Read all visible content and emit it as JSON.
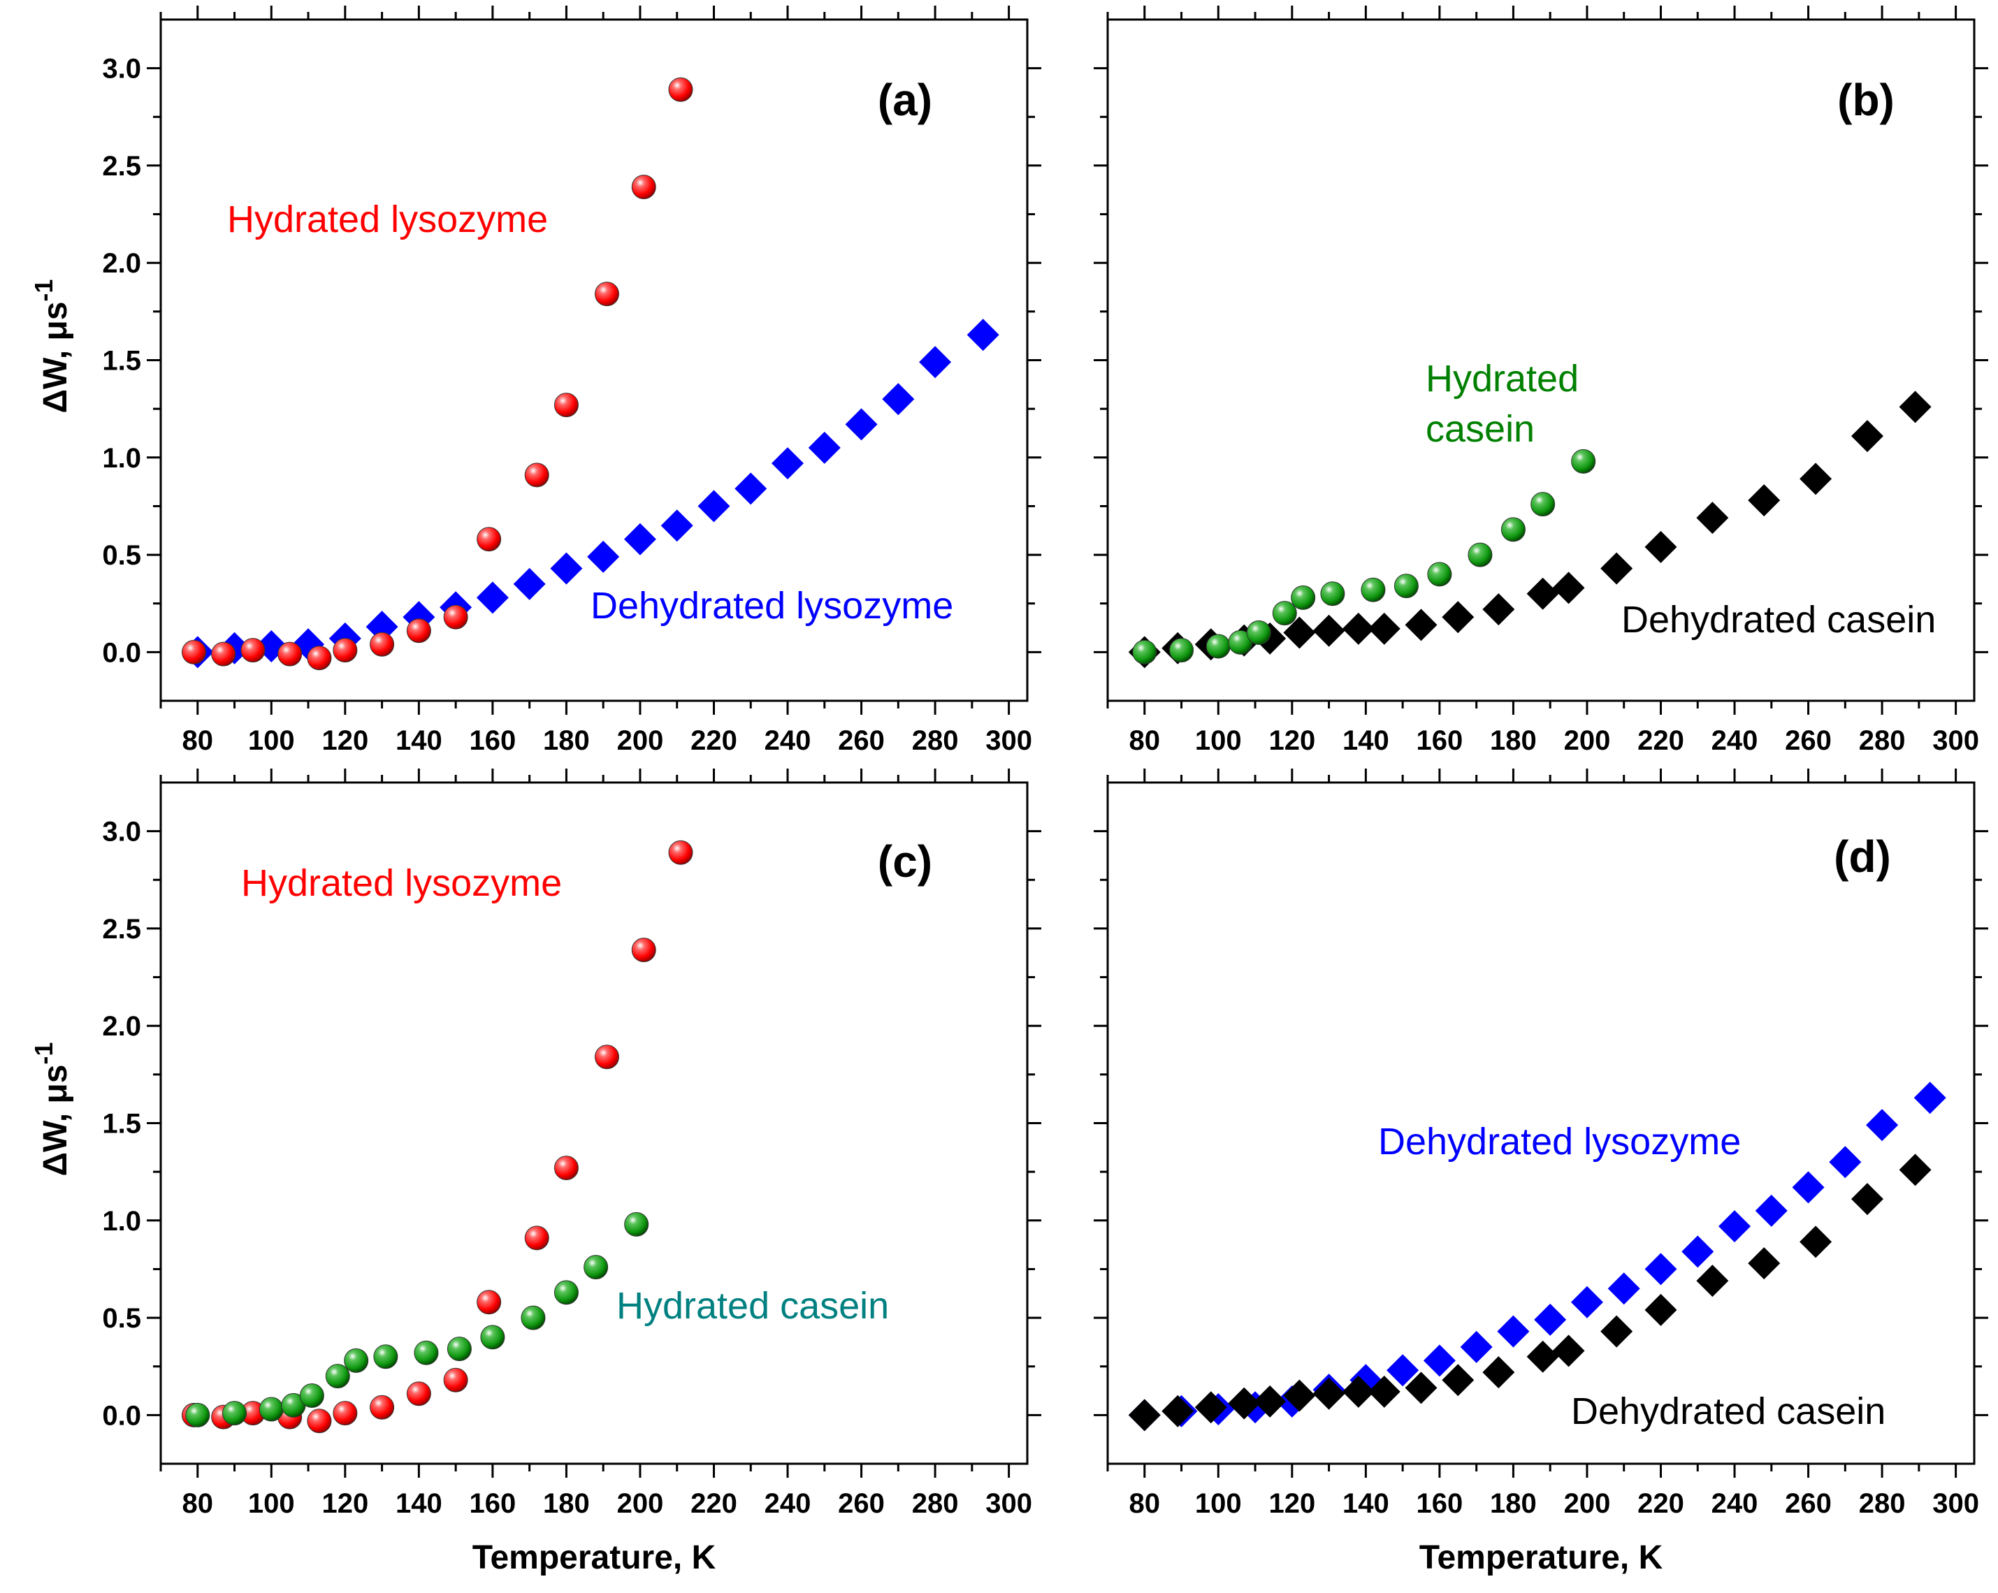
{
  "chart_data": [
    {
      "type": "scatter",
      "panel_label": "(a)",
      "xlabel": "",
      "ylabel_main": "ΔW, μs",
      "ylabel_sup": "-1",
      "xlim": [
        70,
        305
      ],
      "ylim": [
        -0.25,
        3.25
      ],
      "xticks": [
        "80",
        "100",
        "120",
        "140",
        "160",
        "180",
        "200",
        "220",
        "240",
        "260",
        "280",
        "300"
      ],
      "yticks": [
        "0.0",
        "0.5",
        "1.0",
        "1.5",
        "2.0",
        "2.5",
        "3.0"
      ],
      "annotations": [
        {
          "text": "Hydrated lysozyme",
          "color": "#ff0000"
        },
        {
          "text": "Dehydrated lysozyme",
          "color": "#0000ff"
        }
      ],
      "series": [
        {
          "name": "Dehydrated lysozyme",
          "marker": "diamond",
          "color": "#0000ff",
          "x": [
            80,
            90,
            100,
            110,
            120,
            130,
            140,
            150,
            160,
            170,
            180,
            190,
            200,
            210,
            220,
            230,
            240,
            250,
            260,
            270,
            280,
            293
          ],
          "y": [
            0.0,
            0.02,
            0.03,
            0.04,
            0.07,
            0.13,
            0.18,
            0.23,
            0.28,
            0.35,
            0.43,
            0.49,
            0.58,
            0.65,
            0.75,
            0.84,
            0.97,
            1.05,
            1.17,
            1.3,
            1.49,
            1.63
          ]
        },
        {
          "name": "Hydrated lysozyme",
          "marker": "sphere",
          "color": "#ff0000",
          "x": [
            79,
            87,
            95,
            105,
            113,
            120,
            130,
            140,
            150,
            159,
            172,
            180,
            191,
            201,
            211
          ],
          "y": [
            0.0,
            -0.01,
            0.01,
            -0.01,
            -0.03,
            0.01,
            0.04,
            0.11,
            0.18,
            0.58,
            0.91,
            1.27,
            1.84,
            2.39,
            2.89
          ]
        }
      ]
    },
    {
      "type": "scatter",
      "panel_label": "(b)",
      "xlabel": "",
      "xlim": [
        70,
        305
      ],
      "ylim": [
        -0.25,
        3.25
      ],
      "xticks": [
        "80",
        "100",
        "120",
        "140",
        "160",
        "180",
        "200",
        "220",
        "240",
        "260",
        "280",
        "300"
      ],
      "yticks": [],
      "annotations": [
        {
          "text": "Hydrated",
          "color": "#008000"
        },
        {
          "text": "casein",
          "color": "#008000"
        },
        {
          "text": "Dehydrated casein",
          "color": "#000000"
        }
      ],
      "series": [
        {
          "name": "Dehydrated casein",
          "marker": "diamond",
          "color": "#000000",
          "x": [
            80,
            89,
            98,
            107,
            114,
            122,
            130,
            138,
            145,
            155,
            165,
            176,
            188,
            195,
            208,
            220,
            234,
            248,
            262,
            276,
            289
          ],
          "y": [
            0.0,
            0.02,
            0.04,
            0.06,
            0.07,
            0.1,
            0.11,
            0.12,
            0.12,
            0.14,
            0.18,
            0.22,
            0.3,
            0.33,
            0.43,
            0.54,
            0.69,
            0.78,
            0.89,
            1.11,
            1.26
          ]
        },
        {
          "name": "Hydrated casein",
          "marker": "sphere",
          "color": "#008000",
          "x": [
            80,
            90,
            100,
            106,
            111,
            118,
            123,
            131,
            142,
            151,
            160,
            171,
            180,
            188,
            199
          ],
          "y": [
            0.0,
            0.01,
            0.03,
            0.05,
            0.1,
            0.2,
            0.28,
            0.3,
            0.32,
            0.34,
            0.4,
            0.5,
            0.63,
            0.76,
            0.98
          ]
        }
      ]
    },
    {
      "type": "scatter",
      "panel_label": "(c)",
      "xlabel": "Temperature, K",
      "ylabel_main": "ΔW, μs",
      "ylabel_sup": "-1",
      "xlim": [
        70,
        305
      ],
      "ylim": [
        -0.25,
        3.25
      ],
      "xticks": [
        "80",
        "100",
        "120",
        "140",
        "160",
        "180",
        "200",
        "220",
        "240",
        "260",
        "280",
        "300"
      ],
      "yticks": [
        "0.0",
        "0.5",
        "1.0",
        "1.5",
        "2.0",
        "2.5",
        "3.0"
      ],
      "annotations": [
        {
          "text": "Hydrated lysozyme",
          "color": "#ff0000"
        },
        {
          "text": "Hydrated casein",
          "color": "#008080"
        }
      ],
      "series": [
        {
          "name": "Hydrated lysozyme",
          "marker": "sphere",
          "color": "#ff0000",
          "x": [
            79,
            87,
            95,
            105,
            113,
            120,
            130,
            140,
            150,
            159,
            172,
            180,
            191,
            201,
            211
          ],
          "y": [
            0.0,
            -0.01,
            0.01,
            -0.01,
            -0.03,
            0.01,
            0.04,
            0.11,
            0.18,
            0.58,
            0.91,
            1.27,
            1.84,
            2.39,
            2.89
          ]
        },
        {
          "name": "Hydrated casein",
          "marker": "sphere",
          "color": "#008000",
          "x": [
            80,
            90,
            100,
            106,
            111,
            118,
            123,
            131,
            142,
            151,
            160,
            171,
            180,
            188,
            199
          ],
          "y": [
            0.0,
            0.01,
            0.03,
            0.05,
            0.1,
            0.2,
            0.28,
            0.3,
            0.32,
            0.34,
            0.4,
            0.5,
            0.63,
            0.76,
            0.98
          ]
        }
      ]
    },
    {
      "type": "scatter",
      "panel_label": "(d)",
      "xlabel": "Temperature, K",
      "xlim": [
        70,
        305
      ],
      "ylim": [
        -0.25,
        3.25
      ],
      "xticks": [
        "80",
        "100",
        "120",
        "140",
        "160",
        "180",
        "200",
        "220",
        "240",
        "260",
        "280",
        "300"
      ],
      "yticks": [],
      "annotations": [
        {
          "text": "Dehydrated lysozyme",
          "color": "#0000ff"
        },
        {
          "text": "Dehydrated casein",
          "color": "#000000"
        }
      ],
      "series": [
        {
          "name": "Dehydrated lysozyme",
          "marker": "diamond",
          "color": "#0000ff",
          "x": [
            80,
            90,
            100,
            110,
            120,
            130,
            140,
            150,
            160,
            170,
            180,
            190,
            200,
            210,
            220,
            230,
            240,
            250,
            260,
            270,
            280,
            293
          ],
          "y": [
            0.0,
            0.02,
            0.03,
            0.04,
            0.07,
            0.13,
            0.18,
            0.23,
            0.28,
            0.35,
            0.43,
            0.49,
            0.58,
            0.65,
            0.75,
            0.84,
            0.97,
            1.05,
            1.17,
            1.3,
            1.49,
            1.63
          ]
        },
        {
          "name": "Dehydrated casein",
          "marker": "diamond",
          "color": "#000000",
          "x": [
            80,
            89,
            98,
            107,
            114,
            122,
            130,
            138,
            145,
            155,
            165,
            176,
            188,
            195,
            208,
            220,
            234,
            248,
            262,
            276,
            289
          ],
          "y": [
            0.0,
            0.02,
            0.04,
            0.06,
            0.07,
            0.1,
            0.11,
            0.12,
            0.12,
            0.14,
            0.18,
            0.22,
            0.3,
            0.33,
            0.43,
            0.54,
            0.69,
            0.78,
            0.89,
            1.11,
            1.26
          ]
        }
      ]
    }
  ]
}
